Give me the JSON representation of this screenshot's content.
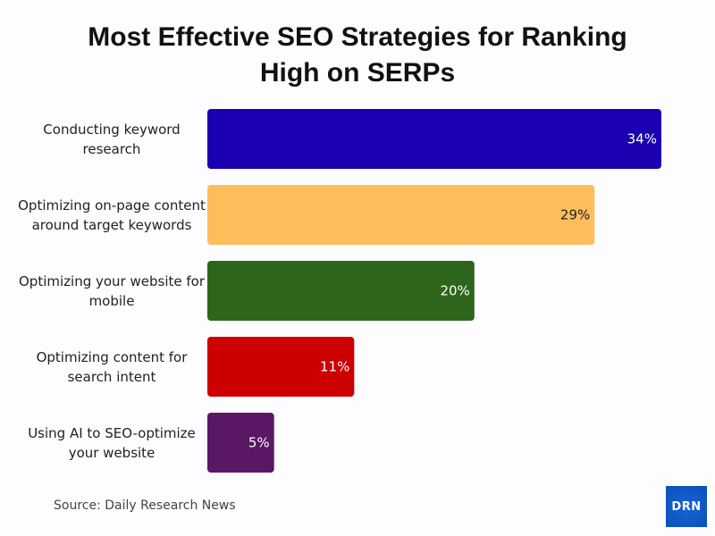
{
  "chart_data": {
    "type": "bar",
    "orientation": "horizontal",
    "title": "Most Effective SEO Strategies for Ranking\nHigh on SERPs",
    "categories": [
      "Conducting keyword research",
      "Optimizing on-page content around target keywords",
      "Optimizing your website for mobile",
      "Optimizing content for search intent",
      "Using AI to SEO-optimize your website"
    ],
    "values": [
      34,
      29,
      20,
      11,
      5
    ],
    "data_labels": [
      "34%",
      "29%",
      "20%",
      "11%",
      "5%"
    ],
    "colors": [
      "#1a00b0",
      "#fdbd5b",
      "#2d651a",
      "#cc0000",
      "#5a1764"
    ],
    "label_colors": [
      "#ffffff",
      "#222222",
      "#ffffff",
      "#ffffff",
      "#ffffff"
    ],
    "xlabel": "",
    "ylabel": "",
    "grid": false,
    "legend": "none"
  },
  "source": "Source: Daily Research News",
  "logo_text": "DRN"
}
